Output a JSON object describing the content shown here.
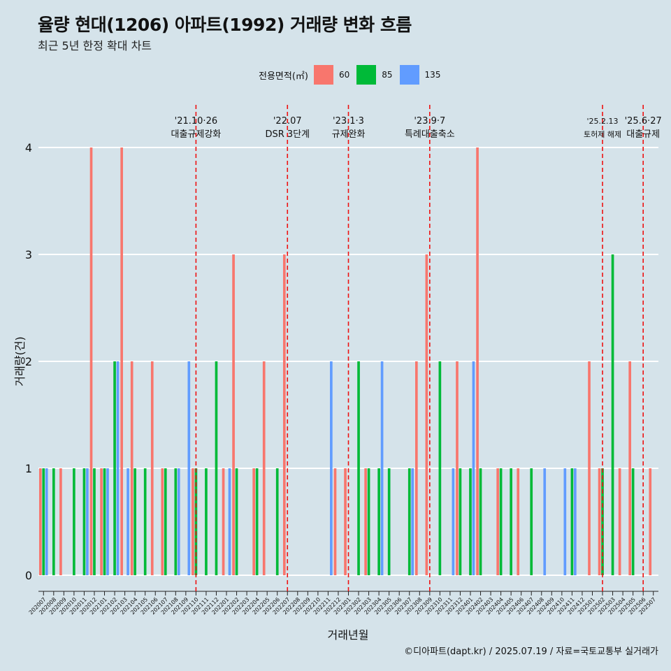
{
  "title": "율량 현대(1206) 아파트(1992) 거래량 변화 흐름",
  "subtitle": "최근 5년 한정 확대 차트",
  "caption": "©디아파트(dapt.kr) / 2025.07.19 / 자료=국토교통부 실거래가",
  "legend": {
    "title": "전용면적(㎡)",
    "items": [
      {
        "label": "60",
        "color": "#f8766d"
      },
      {
        "label": "85",
        "color": "#00ba38"
      },
      {
        "label": "135",
        "color": "#619cff"
      }
    ]
  },
  "chart_data": {
    "type": "bar",
    "xlabel": "거래년월",
    "ylabel": "거래량(건)",
    "ylim": [
      0,
      4
    ],
    "yticks": [
      0,
      1,
      2,
      3,
      4
    ],
    "grid": true,
    "legend_position": "top",
    "categories": [
      "202007",
      "202008",
      "202009",
      "202010",
      "202011",
      "202012",
      "202101",
      "202102",
      "202103",
      "202104",
      "202105",
      "202106",
      "202107",
      "202108",
      "202109",
      "202110",
      "202111",
      "202112",
      "202201",
      "202202",
      "202203",
      "202204",
      "202205",
      "202206",
      "202207",
      "202208",
      "202209",
      "202210",
      "202211",
      "202212",
      "202301",
      "202302",
      "202303",
      "202304",
      "202305",
      "202306",
      "202307",
      "202308",
      "202309",
      "202310",
      "202311",
      "202312",
      "202401",
      "202402",
      "202403",
      "202404",
      "202405",
      "202406",
      "202407",
      "202408",
      "202409",
      "202410",
      "202411",
      "202412",
      "202501",
      "202502",
      "202503",
      "202504",
      "202505",
      "202506",
      "202507"
    ],
    "series": [
      {
        "name": "60",
        "color": "#f8766d",
        "values": [
          1,
          0,
          1,
          0,
          0,
          4,
          1,
          0,
          4,
          2,
          0,
          2,
          1,
          0,
          0,
          1,
          0,
          0,
          1,
          3,
          0,
          1,
          2,
          0,
          3,
          0,
          0,
          0,
          0,
          1,
          1,
          0,
          1,
          0,
          0,
          0,
          0,
          2,
          3,
          0,
          0,
          2,
          0,
          4,
          0,
          1,
          0,
          1,
          0,
          0,
          0,
          0,
          0,
          0,
          2,
          1,
          0,
          1,
          2,
          0,
          1
        ]
      },
      {
        "name": "85",
        "color": "#00ba38",
        "values": [
          1,
          1,
          0,
          1,
          1,
          1,
          1,
          2,
          0,
          1,
          1,
          0,
          1,
          1,
          0,
          1,
          1,
          2,
          0,
          1,
          0,
          1,
          0,
          1,
          0,
          0,
          0,
          0,
          0,
          0,
          0,
          2,
          1,
          1,
          1,
          0,
          1,
          0,
          0,
          2,
          0,
          1,
          1,
          1,
          0,
          1,
          1,
          0,
          1,
          0,
          0,
          0,
          1,
          0,
          0,
          1,
          3,
          0,
          1,
          0,
          0
        ]
      },
      {
        "name": "135",
        "color": "#619cff",
        "values": [
          1,
          0,
          0,
          0,
          1,
          0,
          1,
          2,
          1,
          0,
          0,
          0,
          0,
          1,
          2,
          0,
          0,
          0,
          1,
          0,
          0,
          0,
          0,
          0,
          0,
          0,
          0,
          0,
          2,
          0,
          0,
          0,
          0,
          2,
          0,
          0,
          1,
          0,
          0,
          0,
          1,
          0,
          2,
          0,
          0,
          0,
          0,
          0,
          0,
          1,
          0,
          1,
          1,
          0,
          0,
          0,
          0,
          0,
          0,
          0,
          0
        ]
      }
    ],
    "annotations": [
      {
        "label_date": "'21.10·26",
        "label_text": "대출규제강화",
        "x": "202110"
      },
      {
        "label_date": "'22.07",
        "label_text": "DSR 3단계",
        "x": "202207"
      },
      {
        "label_date": "'23.1·3",
        "label_text": "규제완화",
        "x": "202301"
      },
      {
        "label_date": "'23.9·7",
        "label_text": "특례대출축소",
        "x": "202309"
      },
      {
        "label_date": "'25.2.13",
        "label_text": "토허제 해제",
        "x": "202502"
      },
      {
        "label_date": "'25.6·27",
        "label_text": "대출규제",
        "x": "202506"
      }
    ]
  }
}
